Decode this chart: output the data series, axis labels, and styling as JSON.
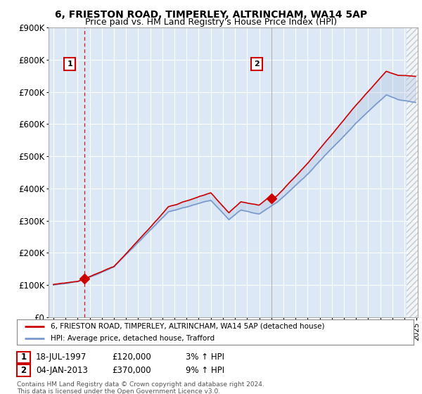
{
  "title": "6, FRIESTON ROAD, TIMPERLEY, ALTRINCHAM, WA14 5AP",
  "subtitle": "Price paid vs. HM Land Registry's House Price Index (HPI)",
  "ylim": [
    0,
    900000
  ],
  "yticks": [
    0,
    100000,
    200000,
    300000,
    400000,
    500000,
    600000,
    700000,
    800000,
    900000
  ],
  "ytick_labels": [
    "£0",
    "£100K",
    "£200K",
    "£300K",
    "£400K",
    "£500K",
    "£600K",
    "£700K",
    "£800K",
    "£900K"
  ],
  "sale1_date_x": 1997.55,
  "sale1_price": 120000,
  "sale2_date_x": 2013.01,
  "sale2_price": 370000,
  "legend_line1": "6, FRIESTON ROAD, TIMPERLEY, ALTRINCHAM, WA14 5AP (detached house)",
  "legend_line2": "HPI: Average price, detached house, Trafford",
  "annotation1_date": "18-JUL-1997",
  "annotation1_price": "£120,000",
  "annotation1_hpi": "3% ↑ HPI",
  "annotation2_date": "04-JAN-2013",
  "annotation2_price": "£370,000",
  "annotation2_hpi": "9% ↑ HPI",
  "footer": "Contains HM Land Registry data © Crown copyright and database right 2024.\nThis data is licensed under the Open Government Licence v3.0.",
  "line_color_red": "#cc0000",
  "line_color_blue": "#7799cc",
  "bg_color": "#dce8f5",
  "grid_color": "#ffffff",
  "title_fontsize": 10,
  "subtitle_fontsize": 9,
  "xmin": 1995.0,
  "xmax": 2025.0
}
